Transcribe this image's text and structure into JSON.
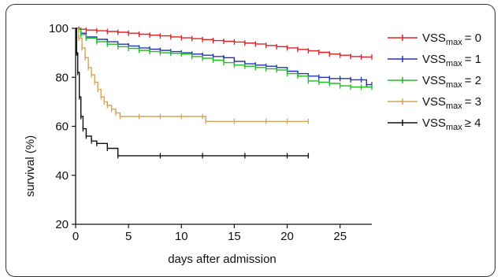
{
  "chart_data": {
    "type": "line",
    "title": "",
    "xlabel": "days after admission",
    "ylabel": "survival (%)",
    "xlim": [
      0,
      28
    ],
    "ylim": [
      20,
      100
    ],
    "xticks": [
      0,
      5,
      10,
      15,
      20,
      25
    ],
    "yticks": [
      20,
      40,
      60,
      80,
      100
    ],
    "grid": false,
    "legend_position": "right",
    "series": [
      {
        "name_base": "VSS",
        "name_sub": "max",
        "name_rel": "= 0",
        "color": "#e02020",
        "x": [
          0,
          0.3,
          1,
          2,
          3,
          4,
          5,
          6,
          7,
          8,
          9,
          10,
          11,
          12,
          13,
          14,
          15,
          16,
          17,
          18,
          19,
          20,
          21,
          22,
          23,
          24,
          25,
          26,
          27,
          28
        ],
        "y": [
          100,
          99.6,
          99.3,
          99,
          98.7,
          98.4,
          98,
          97.6,
          97.2,
          96.9,
          96.5,
          96.1,
          95.8,
          95.4,
          95,
          94.7,
          94.4,
          94,
          93.6,
          93,
          92.5,
          92,
          91.4,
          90.8,
          90.2,
          89.5,
          89,
          88.5,
          88.3,
          88.3
        ]
      },
      {
        "name_base": "VSS",
        "name_sub": "max",
        "name_rel": "= 1",
        "color": "#2233bb",
        "x": [
          0,
          0.5,
          1,
          2,
          3,
          4,
          5,
          6,
          7,
          8,
          9,
          10,
          11,
          12,
          13,
          14,
          15,
          16,
          17,
          18,
          19,
          20,
          21,
          22,
          23,
          24,
          25,
          26,
          27,
          27.5,
          28
        ],
        "y": [
          100,
          98,
          96.5,
          95.5,
          94.5,
          93.5,
          92.8,
          92,
          91.5,
          91,
          90.5,
          90,
          89.5,
          89,
          88.5,
          88,
          86.5,
          85.5,
          85,
          84.5,
          84,
          82.5,
          81.5,
          80.5,
          80,
          79.5,
          79.5,
          79,
          79,
          77,
          77
        ]
      },
      {
        "name_base": "VSS",
        "name_sub": "max",
        "name_rel": "= 2",
        "color": "#22bb22",
        "x": [
          0,
          0.5,
          1,
          2,
          3,
          4,
          5,
          6,
          7,
          8,
          9,
          10,
          11,
          12,
          13,
          14,
          15,
          16,
          17,
          18,
          19,
          20,
          21,
          22,
          23,
          24,
          25,
          26,
          27,
          28
        ],
        "y": [
          100,
          97.5,
          96,
          94.5,
          93.5,
          92.5,
          91.8,
          91,
          90.5,
          90,
          89.8,
          89.5,
          88.5,
          87.8,
          87,
          86,
          85,
          84.5,
          84,
          83.5,
          83,
          81.5,
          80.5,
          78.5,
          78,
          77.5,
          76.5,
          76,
          76,
          76
        ]
      },
      {
        "name_base": "VSS",
        "name_sub": "max",
        "name_rel": "= 3",
        "color": "#d4a45a",
        "x": [
          0,
          0.3,
          0.6,
          0.9,
          1.2,
          1.5,
          1.8,
          2.1,
          2.4,
          2.7,
          3.0,
          3.4,
          3.8,
          4.2,
          6,
          8,
          10,
          12,
          12.3,
          15,
          18,
          20,
          22
        ],
        "y": [
          100,
          96,
          92,
          88,
          84,
          81,
          78,
          75,
          72,
          70,
          68.5,
          67,
          65.5,
          64,
          64,
          64,
          64,
          64,
          62,
          62,
          62,
          62,
          62
        ]
      },
      {
        "name_base": "VSS",
        "name_sub": "max",
        "name_rel": "≥ 4",
        "color": "#111111",
        "x": [
          0,
          0.1,
          0.2,
          0.35,
          0.5,
          0.7,
          1.0,
          1.5,
          2.0,
          3.0,
          4.0,
          8,
          12,
          16,
          20,
          22
        ],
        "y": [
          100,
          90,
          82,
          72,
          64,
          59,
          56,
          54,
          53,
          51,
          48,
          48,
          48,
          48,
          48,
          48
        ]
      }
    ]
  }
}
